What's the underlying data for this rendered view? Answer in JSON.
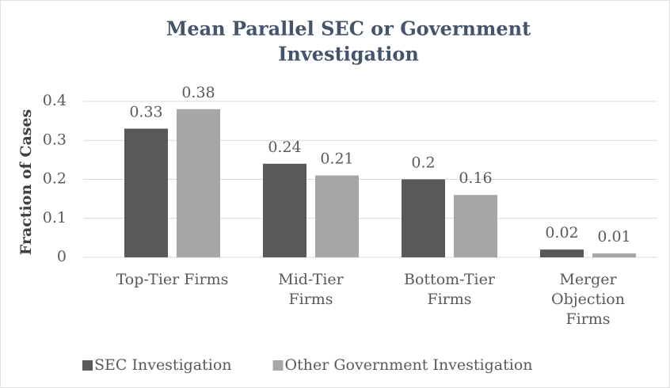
{
  "chart_data": {
    "type": "bar",
    "title": [
      "Mean Parallel SEC or Government",
      "Investigation"
    ],
    "y_label": "Fraction of Cases",
    "categories": [
      [
        "Top-Tier Firms"
      ],
      [
        "Mid-Tier",
        "Firms"
      ],
      [
        "Bottom-Tier",
        "Firms"
      ],
      [
        "Merger",
        "Objection",
        "Firms"
      ]
    ],
    "series": [
      {
        "name": "SEC Investigation",
        "color": "#595959",
        "values": [
          0.33,
          0.24,
          0.2,
          0.02
        ]
      },
      {
        "name": "Other Government Investigation",
        "color": "#a6a6a6",
        "values": [
          0.38,
          0.21,
          0.16,
          0.01
        ]
      }
    ],
    "ylim": [
      0,
      0.4
    ],
    "yticks": [
      0,
      0.1,
      0.2,
      0.3,
      0.4
    ],
    "grid": true,
    "legend": "bottom"
  }
}
